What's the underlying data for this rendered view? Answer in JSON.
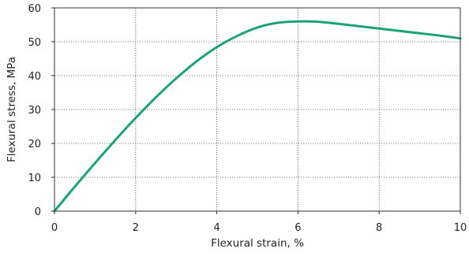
{
  "chart_data": {
    "type": "line",
    "title": "",
    "xlabel": "Flexural strain, %",
    "ylabel": "Flexural stress, MPa",
    "xlim": [
      0,
      10
    ],
    "ylim": [
      0,
      60
    ],
    "x_ticks": [
      0,
      2,
      4,
      6,
      8,
      10
    ],
    "y_ticks": [
      0,
      10,
      20,
      30,
      40,
      50,
      60
    ],
    "grid": true,
    "legend": "none",
    "series": [
      {
        "color": "#1aa37a",
        "x": [
          0,
          0.5,
          1,
          1.5,
          2,
          2.5,
          3,
          3.5,
          4,
          4.5,
          5,
          5.5,
          6,
          6.25,
          6.5,
          7,
          7.5,
          8,
          8.5,
          9,
          9.5,
          10
        ],
        "y": [
          0,
          7.2,
          14.2,
          21.0,
          27.5,
          33.6,
          39.2,
          44.2,
          48.4,
          51.7,
          54.2,
          55.6,
          56.0,
          56.0,
          55.9,
          55.3,
          54.6,
          53.9,
          53.2,
          52.5,
          51.8,
          51.0
        ]
      }
    ]
  }
}
